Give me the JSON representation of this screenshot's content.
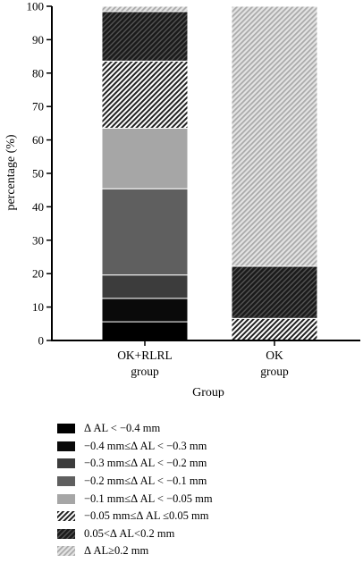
{
  "chart_data": {
    "type": "bar",
    "stacked": true,
    "xlabel": "Group",
    "ylabel": "percentage (%)",
    "ylim": [
      0,
      100
    ],
    "yticks": [
      0,
      10,
      20,
      30,
      40,
      50,
      60,
      70,
      80,
      90,
      100
    ],
    "grid": false,
    "legend_position": "bottom",
    "categories": [
      {
        "line1": "OK+RLRL",
        "line2": "group"
      },
      {
        "line1": "OK",
        "line2": "group"
      }
    ],
    "series": [
      {
        "name": "Δ AL < −0.4 mm",
        "color": "#000000",
        "pattern": "solid",
        "values": [
          5.6,
          0
        ]
      },
      {
        "name": "−0.4 mm≤Δ AL < −0.3 mm",
        "color": "#0a0a0a",
        "pattern": "solid",
        "values": [
          7.0,
          0
        ]
      },
      {
        "name": "−0.3 mm≤Δ AL < −0.2 mm",
        "color": "#3c3c3c",
        "pattern": "solid",
        "values": [
          7.0,
          0
        ]
      },
      {
        "name": "−0.2 mm≤Δ AL < −0.1 mm",
        "color": "#5f5f5f",
        "pattern": "solid",
        "values": [
          25.8,
          0
        ]
      },
      {
        "name": "−0.1 mm≤Δ AL < −0.05 mm",
        "color": "#a6a6a6",
        "pattern": "solid",
        "values": [
          18.1,
          0
        ]
      },
      {
        "name": "−0.05 mm≤Δ AL ≤0.05 mm",
        "color": "#222222",
        "pattern": "hatch-light",
        "values": [
          20.1,
          6.6
        ]
      },
      {
        "name": "0.05<Δ AL<0.2 mm",
        "color": "#1e1e1e",
        "pattern": "hatch-dark",
        "values": [
          14.8,
          15.6
        ]
      },
      {
        "name": "Δ AL≥0.2 mm",
        "color": "#b4b4b4",
        "pattern": "hatch-gray",
        "values": [
          1.6,
          77.8
        ]
      }
    ]
  }
}
